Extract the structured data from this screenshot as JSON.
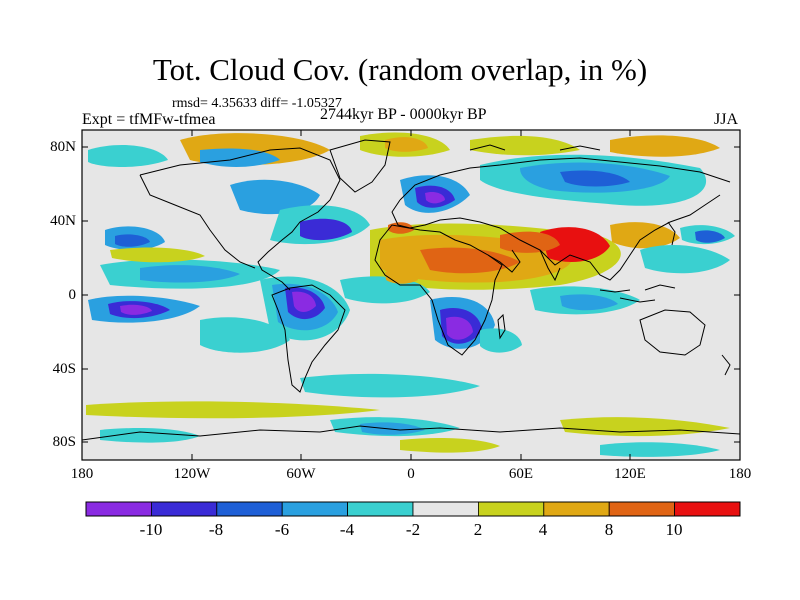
{
  "title": "Tot. Cloud Cov. (random overlap, in %)",
  "stats": "rmsd= 4.35633 diff= -1.05327",
  "experiment": "Expt = tfMFw-tfmea",
  "period": "2744kyr BP - 0000kyr BP",
  "season": "JJA",
  "lat_labels": [
    "80N",
    "40N",
    "0",
    "40S",
    "80S"
  ],
  "lon_labels": [
    "180",
    "120W",
    "60W",
    "0",
    "60E",
    "120E",
    "180"
  ],
  "colorbar": {
    "colors": [
      "#8a2be2",
      "#3a2bd6",
      "#1e5fd6",
      "#2aa0e0",
      "#3ad0d0",
      "#e6e6e6",
      "#c8d21e",
      "#e0a814",
      "#e06414",
      "#e81010"
    ],
    "labels": [
      "-10",
      "-8",
      "-6",
      "-4",
      "-2",
      "2",
      "4",
      "8",
      "10"
    ]
  }
}
